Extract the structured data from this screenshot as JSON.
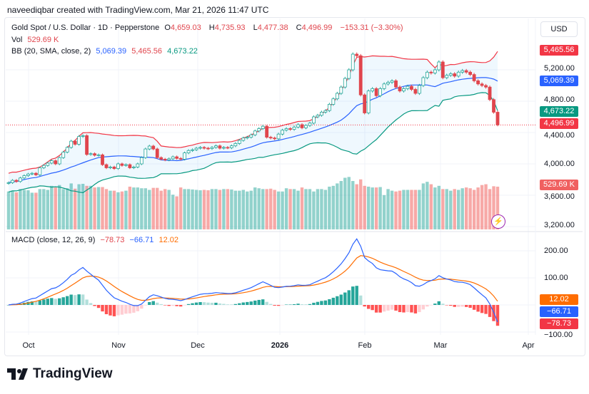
{
  "credit": "naveediqbar created with TradingView.com, Mar 21, 2026 11:47 UTC",
  "legend": {
    "symbol": "Gold Spot / U.S. Dollar · 1D · Pepperstone",
    "o_label": "O",
    "o": "4,659.03",
    "h_label": "H",
    "h": "4,735.93",
    "l_label": "L",
    "l": "4,477.38",
    "c_label": "C",
    "c": "4,496.99",
    "change": "−153.31 (−3.30%)",
    "vol_label": "Vol",
    "vol": "529.69 K",
    "bb_label": "BB (20, SMA, close, 2)",
    "bb_basis": "5,069.39",
    "bb_upper": "5,465.56",
    "bb_lower": "4,673.22",
    "macd_label": "MACD (close, 12, 26, 9)",
    "macd": "−78.73",
    "signal": "−66.71",
    "hist": "12.02"
  },
  "currency_button": "USD",
  "price_axis": [
    "5,200.00",
    "4,800.00",
    "4,400.00",
    "4,000.00",
    "3,600.00",
    "3,200.00"
  ],
  "macd_axis": [
    "200.00",
    "100.00",
    "−100.00"
  ],
  "price_tags": {
    "bb_upper": "5,465.56",
    "bb_basis": "5,069.39",
    "bb_lower": "4,673.22",
    "last": "4,496.99",
    "volume": "529.69 K"
  },
  "macd_tags": {
    "hist": "12.02",
    "signal": "−66.71",
    "macd": "−78.73"
  },
  "time_axis": [
    "Oct",
    "Nov",
    "Dec",
    "2026",
    "Feb",
    "Mar",
    "Apr"
  ],
  "logo_text": "TradingView",
  "colors": {
    "up": "#26a69a",
    "down": "#e0454d",
    "bb_upper": "#f23645",
    "bb_basis": "#2962ff",
    "bb_lower": "#089981",
    "macd": "#2962ff",
    "signal": "#ff6d00",
    "volume_tag": "#f06060"
  },
  "chart_data": {
    "type": "candlestick",
    "symbol": "Gold Spot / U.S. Dollar",
    "interval": "1D",
    "y_range": [
      3200,
      5600
    ],
    "macd_range": [
      -110,
      250
    ],
    "indicators": [
      "Bollinger Bands (20, SMA, close, 2)",
      "Volume",
      "MACD (close, 12, 26, 9)"
    ],
    "last": {
      "open": 4659.03,
      "high": 4735.93,
      "low": 4477.38,
      "close": 4496.99,
      "volume_k": 529.69,
      "bb_basis": 5069.39,
      "bb_upper": 5465.56,
      "bb_lower": 4673.22,
      "macd": -78.73,
      "signal": -66.71,
      "hist": 12.02
    },
    "close": [
      3760,
      3790,
      3775,
      3820,
      3850,
      3870,
      3880,
      3860,
      3950,
      3980,
      4010,
      4040,
      4000,
      4080,
      4150,
      4210,
      4290,
      4250,
      4350,
      4360,
      4120,
      4130,
      4110,
      4115,
      3990,
      3950,
      3960,
      3940,
      4000,
      3980,
      3990,
      3950,
      3960,
      4000,
      4080,
      4190,
      4227,
      4190,
      4080,
      4060,
      4050,
      4065,
      4090,
      4070,
      4060,
      4140,
      4170,
      4180,
      4200,
      4210,
      4200,
      4195,
      4210,
      4230,
      4200,
      4210,
      4205,
      4230,
      4260,
      4300,
      4330,
      4340,
      4370,
      4420,
      4450,
      4480,
      4340,
      4330,
      4320,
      4380,
      4430,
      4450,
      4440,
      4470,
      4500,
      4460,
      4490,
      4520,
      4600,
      4620,
      4660,
      4680,
      4760,
      4830,
      4900,
      4980,
      5090,
      5200,
      5400,
      5380,
      4880,
      4650,
      4930,
      4960,
      4870,
      4960,
      5020,
      5040,
      5060,
      4980,
      4930,
      4960,
      4990,
      4950,
      4900,
      5000,
      5100,
      5170,
      5160,
      5200,
      5300,
      5100,
      5130,
      5150,
      5120,
      5170,
      5190,
      5170,
      5140,
      5060,
      5020,
      5000,
      4980,
      4820,
      4659.03,
      4496.99
    ],
    "volume_k": [
      470,
      480,
      460,
      500,
      490,
      485,
      455,
      455,
      500,
      500,
      490,
      540,
      520,
      550,
      500,
      510,
      570,
      505,
      560,
      565,
      540,
      540,
      520,
      525,
      525,
      500,
      480,
      480,
      460,
      470,
      480,
      530,
      520,
      520,
      510,
      510,
      490,
      515,
      515,
      480,
      500,
      490,
      430,
      410,
      520,
      500,
      500,
      495,
      490,
      485,
      490,
      485,
      500,
      500,
      490,
      500,
      500,
      495,
      480,
      480,
      490,
      470,
      480,
      520,
      510,
      500,
      500,
      505,
      490,
      470,
      470,
      510,
      500,
      500,
      480,
      520,
      500,
      500,
      470,
      500,
      500,
      490,
      530,
      540,
      570,
      600,
      640,
      650,
      600,
      560,
      620,
      540,
      530,
      520,
      520,
      525,
      425,
      500,
      480,
      470,
      480,
      490,
      490,
      490,
      490,
      490,
      570,
      590,
      560,
      520,
      540,
      500,
      500,
      480,
      500,
      490,
      510,
      520,
      510,
      490,
      520,
      550,
      560,
      500,
      535,
      529.69
    ]
  }
}
